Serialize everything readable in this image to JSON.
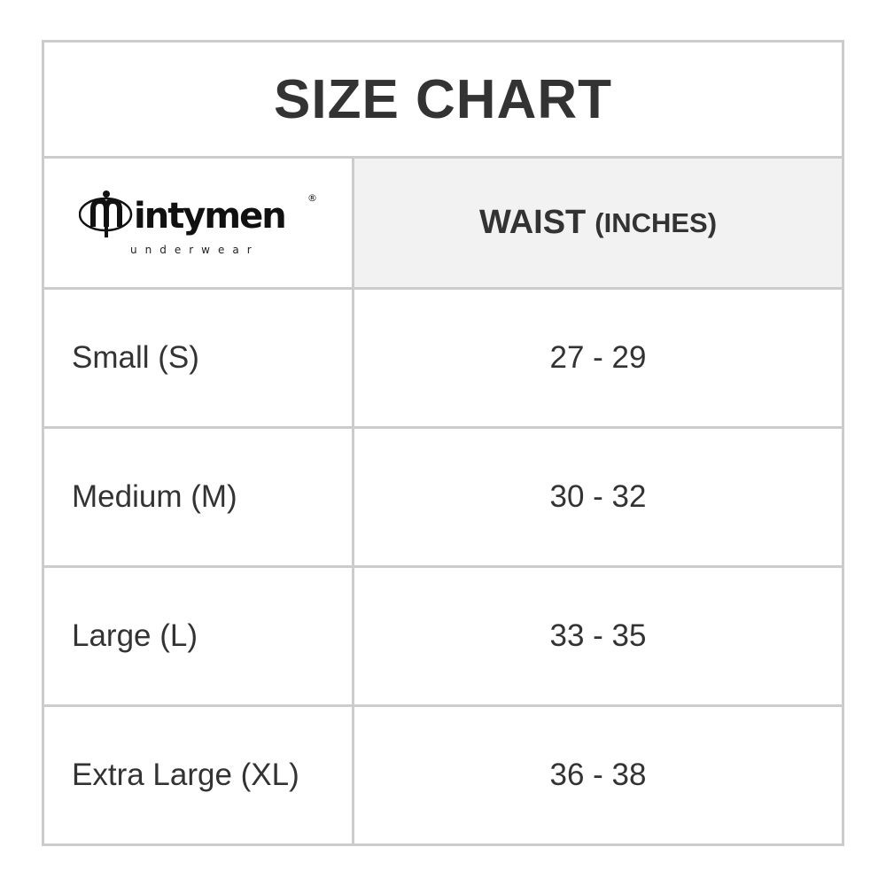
{
  "title": "SIZE CHART",
  "logo": {
    "brand": "intymen",
    "tagline": "underwear"
  },
  "header": {
    "column": "WAIST",
    "unit": "(INCHES)"
  },
  "rows": [
    {
      "size": "Small (S)",
      "waist": "27 - 29"
    },
    {
      "size": "Medium (M)",
      "waist": "30 - 32"
    },
    {
      "size": "Large (L)",
      "waist": "33 - 35"
    },
    {
      "size": "Extra Large (XL)",
      "waist": "36 - 38"
    }
  ],
  "colors": {
    "border": "#cccccc",
    "header_bg": "#f2f2f2",
    "text": "#333333"
  }
}
